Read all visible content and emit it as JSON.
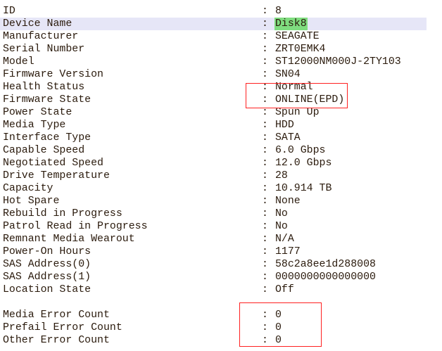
{
  "properties": [
    {
      "label": "ID",
      "value": "8"
    },
    {
      "label": "Device Name",
      "value": "Disk8",
      "selected": true
    },
    {
      "label": "Manufacturer",
      "value": "SEAGATE"
    },
    {
      "label": "Serial Number",
      "value": "ZRT0EMK4"
    },
    {
      "label": "Model",
      "value": "ST12000NM000J-2TY103"
    },
    {
      "label": "Firmware Version",
      "value": "SN04"
    },
    {
      "label": "Health Status",
      "value": "Normal"
    },
    {
      "label": "Firmware State",
      "value": "ONLINE(EPD)"
    },
    {
      "label": "Power State",
      "value": "Spun Up"
    },
    {
      "label": "Media Type",
      "value": "HDD"
    },
    {
      "label": "Interface Type",
      "value": "SATA"
    },
    {
      "label": "Capable Speed",
      "value": "6.0 Gbps"
    },
    {
      "label": "Negotiated Speed",
      "value": "12.0 Gbps"
    },
    {
      "label": "Drive Temperature",
      "value": "28"
    },
    {
      "label": "Capacity",
      "value": "10.914 TB"
    },
    {
      "label": "Hot Spare",
      "value": "None"
    },
    {
      "label": "Rebuild in Progress",
      "value": "No"
    },
    {
      "label": "Patrol Read in Progress",
      "value": "No"
    },
    {
      "label": "Remnant Media Wearout",
      "value": "N/A"
    },
    {
      "label": "Power-On Hours",
      "value": "1177"
    },
    {
      "label": "SAS Address(0)",
      "value": "58c2a8ee1d288008"
    },
    {
      "label": "SAS Address(1)",
      "value": "0000000000000000"
    },
    {
      "label": "Location State",
      "value": "Off"
    }
  ],
  "error_counts": [
    {
      "label": "Media Error Count",
      "value": "0"
    },
    {
      "label": "Prefail Error Count",
      "value": "0"
    },
    {
      "label": "Other Error Count",
      "value": "0"
    }
  ],
  "separator": ":",
  "colors": {
    "highlight_row": "#e6e6f7",
    "highlight_value": "#7fdc7f",
    "annotation_box": "#ff2020"
  }
}
